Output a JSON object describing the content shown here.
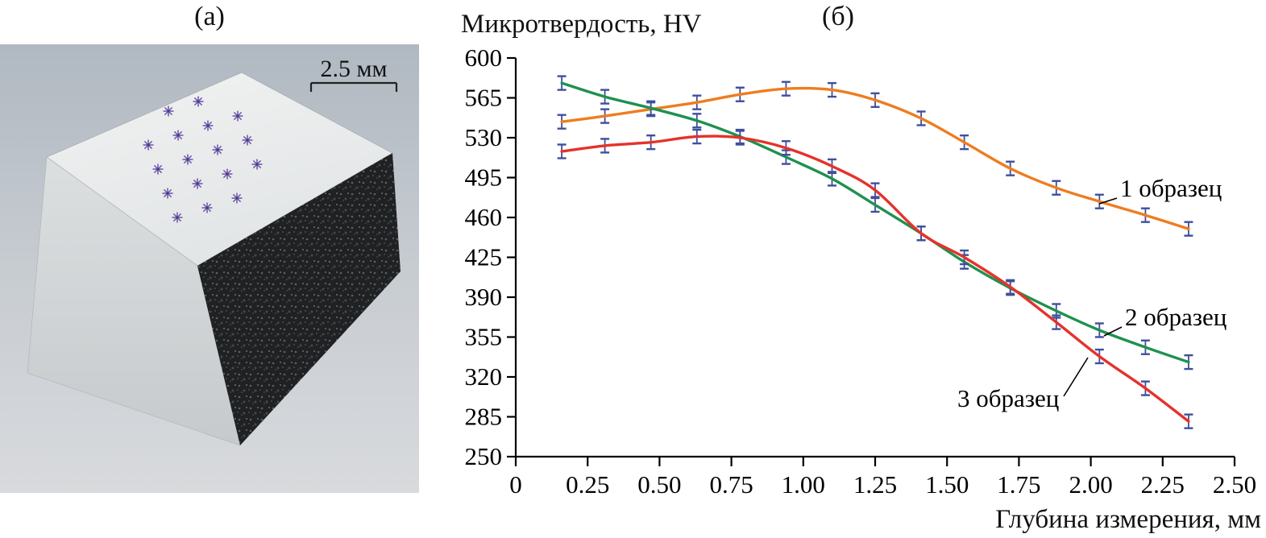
{
  "figure": {
    "panel_a_label": "(а)",
    "panel_b_label": "(б)",
    "scale_bar_label": "2.5 мм"
  },
  "sample_image": {
    "indent_color": "#6b55a8",
    "indent_center_color": "#4a3a86",
    "indent_rows": [
      [
        1,
        2
      ],
      [
        0,
        3
      ],
      [
        0,
        3
      ],
      [
        0,
        3
      ],
      [
        0,
        2
      ]
    ]
  },
  "chart_data": {
    "type": "line",
    "title": "",
    "ylabel": "Микротвердость, HV",
    "xlabel": "Глубина измерения, мм",
    "xlim": [
      0,
      2.5
    ],
    "ylim": [
      250,
      600
    ],
    "y_ticks": [
      250,
      285,
      320,
      355,
      390,
      425,
      460,
      495,
      530,
      565,
      600
    ],
    "x_ticks": [
      0,
      0.25,
      0.5,
      0.75,
      1,
      1.25,
      1.5,
      1.75,
      2,
      2.25,
      2.5
    ],
    "x_tick_labels": [
      "0",
      "0.25",
      "0.50",
      "0.75",
      "1.00",
      "1.25",
      "1.50",
      "1.75",
      "2.00",
      "2.25",
      "2.50"
    ],
    "grid": false,
    "legend": "inline-labels",
    "error_bar_hv": 6,
    "error_bar_color": "#3f4f9c",
    "x": [
      0.16,
      0.31,
      0.47,
      0.63,
      0.78,
      0.94,
      1.1,
      1.25,
      1.41,
      1.56,
      1.72,
      1.88,
      2.03,
      2.19,
      2.34
    ],
    "series": [
      {
        "name": "1 образец",
        "color": "#ee7d20",
        "values": [
          544,
          549,
          555,
          561,
          568,
          573,
          572,
          563,
          547,
          526,
          503,
          486,
          474,
          462,
          450
        ]
      },
      {
        "name": "2 образец",
        "color": "#1f9150",
        "values": [
          578,
          566,
          556,
          545,
          531,
          513,
          494,
          471,
          446,
          421,
          398,
          378,
          361,
          346,
          333
        ]
      },
      {
        "name": "3 образец",
        "color": "#e5322b",
        "values": [
          518,
          523,
          526,
          531,
          530,
          521,
          505,
          484,
          446,
          425,
          399,
          368,
          338,
          310,
          281
        ]
      }
    ]
  }
}
